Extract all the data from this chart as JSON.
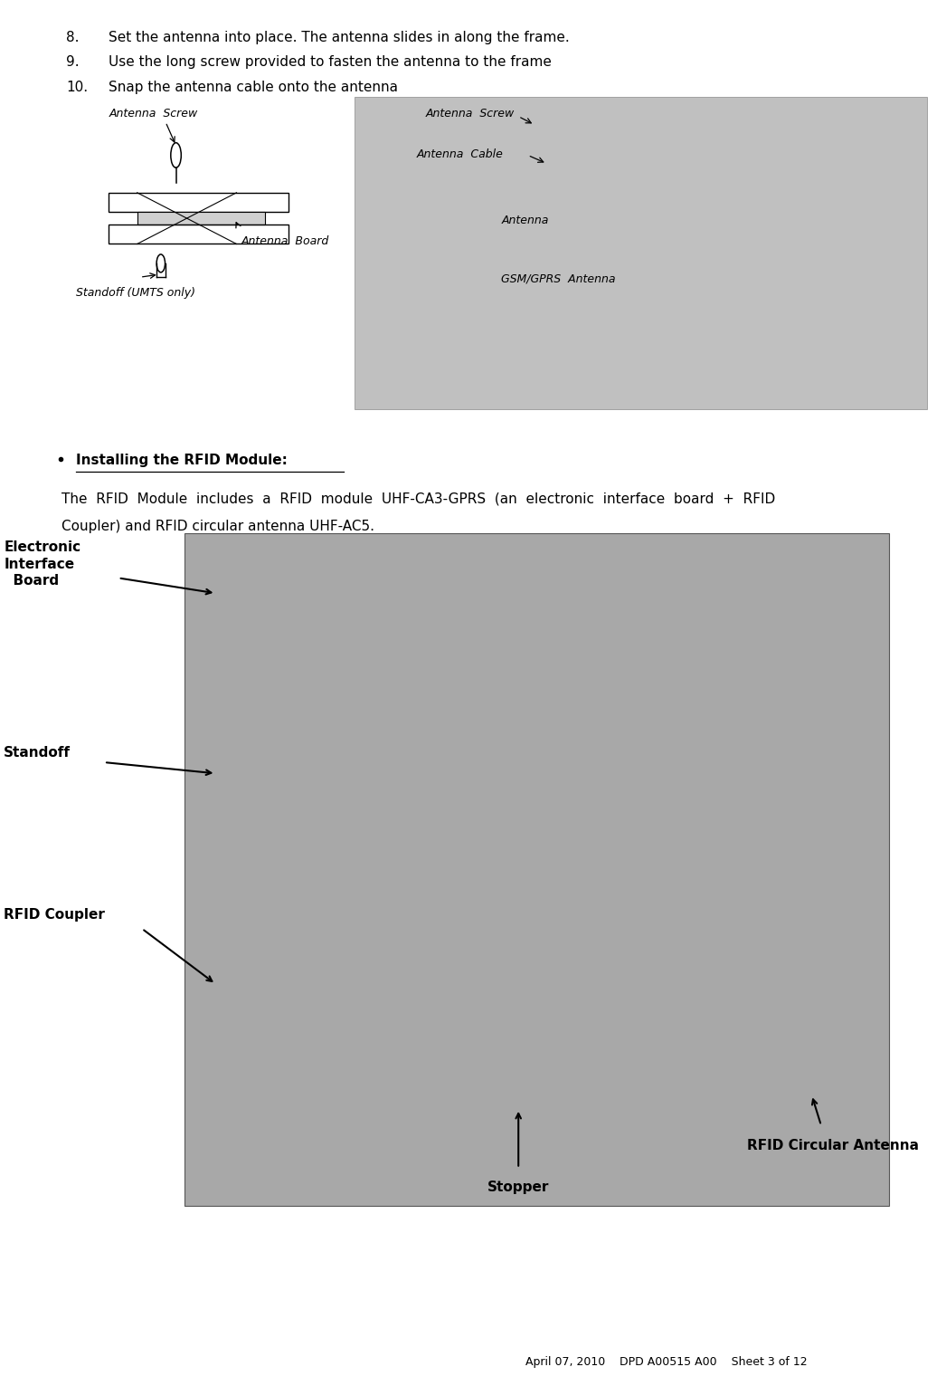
{
  "bg_color": "#ffffff",
  "numbered_items": [
    {
      "num": "8.",
      "text": "Set the antenna into place. The antenna slides in along the frame."
    },
    {
      "num": "9.",
      "text": "Use the long screw provided to fasten the antenna to the frame"
    },
    {
      "num": "10.",
      "text": "Snap the antenna cable onto the antenna"
    }
  ],
  "bullet_header": "Installing the RFID Module:",
  "para_line1": "The  RFID  Module  includes  a  RFID  module  UHF-CA3-GPRS  (an  electronic  interface  board  +  RFID",
  "para_line2": "Coupler) and RFID circular antenna UHF-AC5.",
  "label_eib": "Electronic\nInterface\n  Board",
  "label_standoff": "Standoff",
  "label_coupler": "RFID Coupler",
  "label_rfid_ant": "RFID Circular Antenna",
  "label_stopper": "Stopper",
  "footer_date": "April 07, 2010",
  "footer_doc": "DPD A00515 A00    Sheet 3 of 12",
  "font_body": 11,
  "font_label": 11,
  "font_footer": 9,
  "font_diagram": 9
}
